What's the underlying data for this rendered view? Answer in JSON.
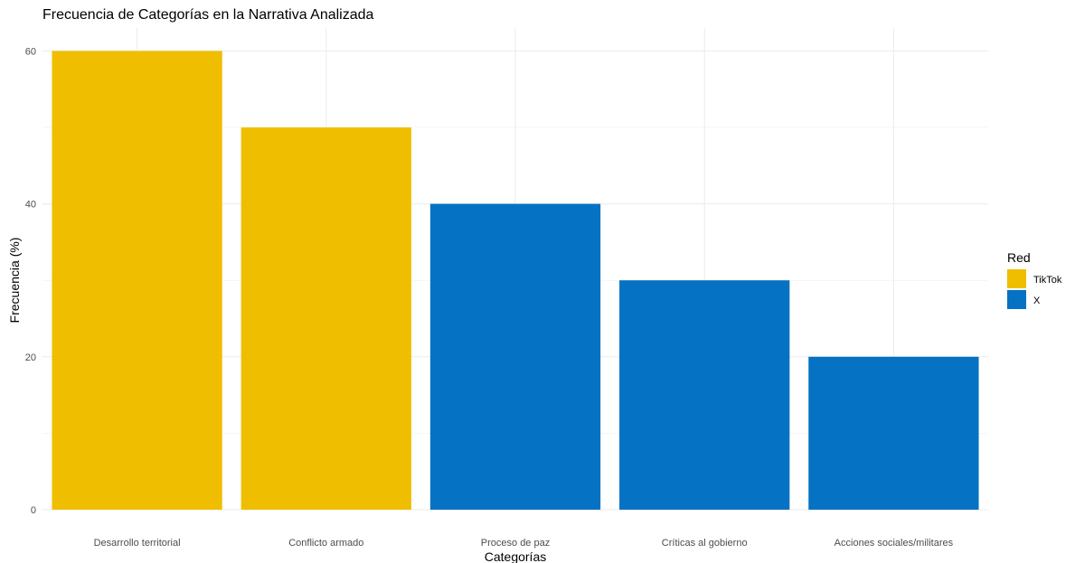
{
  "chart_data": {
    "type": "bar",
    "title": "Frecuencia de Categorías en la Narrativa Analizada",
    "xlabel": "Categorías",
    "ylabel": "Frecuencia (%)",
    "categories": [
      "Desarrollo territorial",
      "Conflicto armado",
      "Proceso de paz",
      "Críticas al gobierno",
      "Acciones sociales/militares"
    ],
    "values": [
      60,
      50,
      40,
      30,
      20
    ],
    "fill_group": [
      "TikTok",
      "TikTok",
      "X",
      "X",
      "X"
    ],
    "ylim": [
      0,
      63
    ],
    "yticks": [
      0,
      20,
      40,
      60
    ],
    "grid": true,
    "legend": {
      "title": "Red",
      "placement": "right",
      "items": [
        {
          "label": "TikTok",
          "color": "#F0BE00"
        },
        {
          "label": "X",
          "color": "#0572C3"
        }
      ]
    }
  }
}
